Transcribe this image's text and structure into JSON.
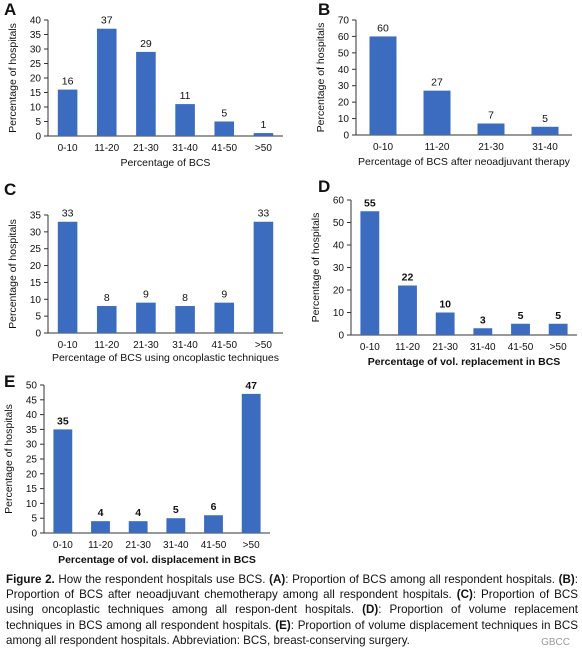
{
  "figure": {
    "caption_parts": [
      {
        "text": "Figure 2.",
        "bold": true
      },
      {
        "text": " How the respondent hospitals use BCS. ",
        "bold": false
      },
      {
        "text": "(A)",
        "bold": true
      },
      {
        "text": ": Proportion of BCS among all respondent hospitals. ",
        "bold": false
      },
      {
        "text": "(B)",
        "bold": true
      },
      {
        "text": ": Proportion of BCS after neoadjuvant chemotherapy among all respondent hospitals. ",
        "bold": false
      },
      {
        "text": "(C)",
        "bold": true
      },
      {
        "text": ": Proportion of BCS using oncoplastic techniques among all respon-dent hospitals. ",
        "bold": false
      },
      {
        "text": "(D)",
        "bold": true
      },
      {
        "text": ": Proportion of volume replacement techniques in BCS among all respondent hospitals. ",
        "bold": false
      },
      {
        "text": "(E)",
        "bold": true
      },
      {
        "text": ": Proportion of volume displacement techniques in BCS among all respondent hospitals. Abbreviation: BCS, breast-conserving surgery.",
        "bold": false
      }
    ],
    "watermark": "GBCC"
  },
  "colors": {
    "bar": "#3b6cbf",
    "axis": "#333333"
  },
  "chart_data": [
    {
      "panel": "A",
      "type": "bar",
      "categories": [
        "0-10",
        "11-20",
        "21-30",
        "31-40",
        "41-50",
        ">50"
      ],
      "values": [
        16,
        37,
        29,
        11,
        5,
        1
      ],
      "xlabel": "Percentage of BCS",
      "ylabel": "Percentage of hospitals",
      "ylim": [
        0,
        40
      ],
      "yticks": [
        0,
        5,
        10,
        15,
        20,
        25,
        30,
        35,
        40
      ],
      "grid": false
    },
    {
      "panel": "B",
      "type": "bar",
      "categories": [
        "0-10",
        "11-20",
        "21-30",
        "31-40"
      ],
      "values": [
        60,
        27,
        7,
        5
      ],
      "xlabel": "Percentage of BCS after neoadjuvant therapy",
      "ylabel": "Percentage of hospitals",
      "ylim": [
        0,
        70
      ],
      "yticks": [
        0,
        10,
        20,
        30,
        40,
        50,
        60,
        70
      ],
      "grid": false
    },
    {
      "panel": "C",
      "type": "bar",
      "categories": [
        "0-10",
        "11-20",
        "21-30",
        "31-40",
        "41-50",
        ">50"
      ],
      "values": [
        33,
        8,
        9,
        8,
        9,
        33
      ],
      "xlabel": "Percentage of BCS using oncoplastic techniques",
      "ylabel": "Percentage of hospitals",
      "ylim": [
        0,
        35
      ],
      "yticks": [
        0,
        5,
        10,
        15,
        20,
        25,
        30,
        35
      ],
      "grid": false
    },
    {
      "panel": "D",
      "type": "bar",
      "categories": [
        "0-10",
        "11-20",
        "21-30",
        "31-40",
        "41-50",
        ">50"
      ],
      "values": [
        55,
        22,
        10,
        3,
        5,
        5
      ],
      "xlabel": "Percentage of vol. replacement in BCS",
      "ylabel": "Percentage of hospitals",
      "ylim": [
        0,
        60
      ],
      "yticks": [
        0,
        10,
        20,
        30,
        40,
        50,
        60
      ],
      "grid": false
    },
    {
      "panel": "E",
      "type": "bar",
      "categories": [
        "0-10",
        "11-20",
        "21-30",
        "31-40",
        "41-50",
        ">50"
      ],
      "values": [
        35,
        4,
        4,
        5,
        6,
        47
      ],
      "xlabel": "Percentage of vol. displacement in BCS",
      "ylabel": "Percentage of hospitals",
      "ylim": [
        0,
        50
      ],
      "yticks": [
        0,
        5,
        10,
        15,
        20,
        25,
        30,
        35,
        40,
        45,
        50
      ],
      "grid": false
    }
  ]
}
